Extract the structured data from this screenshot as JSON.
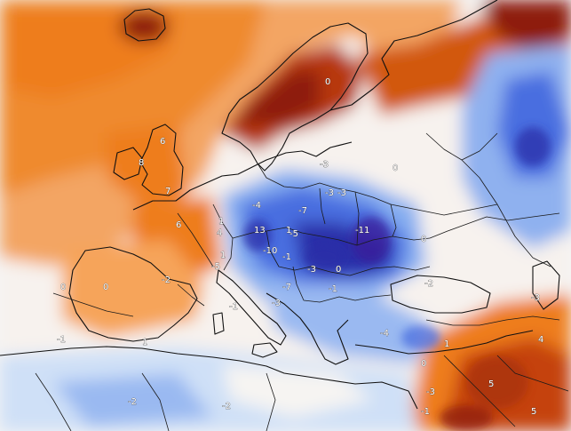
{
  "map": {
    "colors": {
      "deep_warm": "#8e1e0a",
      "warm_strong": "#c5420c",
      "warm": "#ee7d1e",
      "warm_light": "#f6a45a",
      "warm_pale": "#fbc99b",
      "neutral": "#f6f4f2",
      "cool_pale": "#cfe0f7",
      "cool": "#86aef0",
      "cool_strong": "#4a6ee0",
      "deep_cool": "#2a2ea8",
      "deepest_cool": "#3a1f9a"
    },
    "anomaly_labels": [
      "6",
      "7",
      "8",
      "6",
      "4",
      "1",
      "1",
      "-5",
      "-4",
      "13",
      "-10",
      "-5",
      "-1",
      "-7",
      "-3",
      "-3",
      "-11",
      "-7",
      "-3",
      "0",
      "0",
      "-1",
      "0",
      "1",
      "-2",
      "-1",
      "-4",
      "-1",
      "-2",
      "0",
      "0",
      "1",
      "5",
      "4",
      "-1",
      "-2",
      "0",
      "-3",
      "-3",
      "-3",
      "1",
      "5",
      "-3",
      "-2",
      "0"
    ]
  }
}
